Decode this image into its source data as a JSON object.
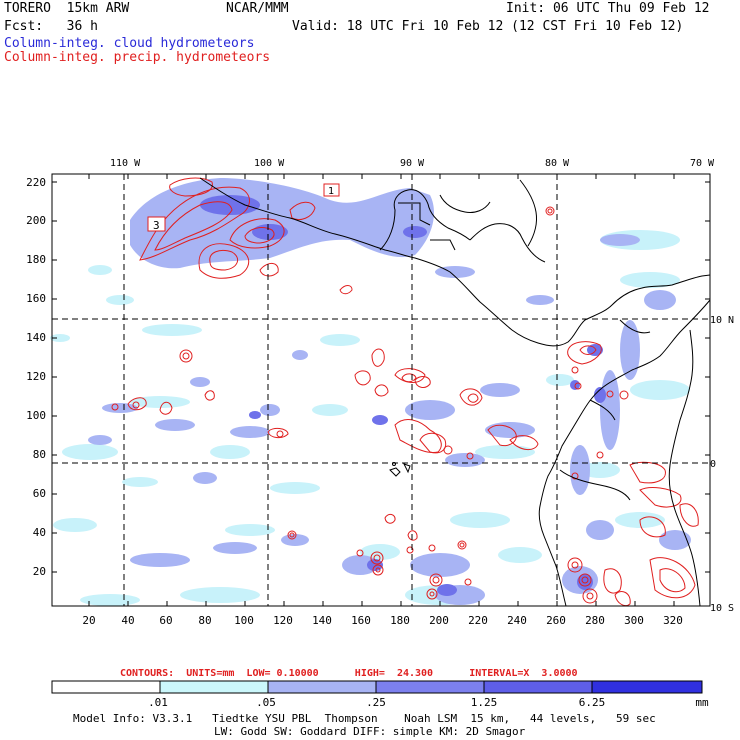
{
  "header": {
    "model": "TORERO  15km ARW",
    "org": "NCAR/MMM",
    "init": "Init: 06 UTC Thu 09 Feb 12",
    "fcst": "Fcst:   36 h",
    "valid": "Valid: 18 UTC Fri 10 Feb 12 (12 CST Fri 10 Feb 12)",
    "field_blue": "Column-integ. cloud hydrometeors",
    "field_red": "Column-integ. precip. hydrometeors"
  },
  "map": {
    "lon_labels": [
      "110 W",
      "100 W",
      "90 W",
      "80 W",
      "70 W"
    ],
    "lat_labels": [
      "10 N",
      "0",
      "10 S"
    ],
    "y_ticks": [
      "220",
      "200",
      "180",
      "160",
      "140",
      "120",
      "100",
      "80",
      "60",
      "40",
      "20"
    ],
    "x_ticks": [
      "20",
      "40",
      "60",
      "80",
      "100",
      "120",
      "140",
      "160",
      "180",
      "200",
      "220",
      "240",
      "260",
      "280",
      "300",
      "320"
    ],
    "box_labels": [
      "3",
      "1"
    ],
    "colors": {
      "cloud_light": "#c8f2fa",
      "cloud_mid": "#a8b4f4",
      "cloud_dark": "#6f72ea",
      "precip": "#e02020",
      "coast": "#000000"
    }
  },
  "contour_info": {
    "text": "CONTOURS:  UNITS=mm  LOW= 0.10000      HIGH=  24.300      INTERVAL=X  3.0000"
  },
  "colorbar": {
    "labels": [
      ".01",
      ".05",
      ".25",
      "1.25",
      "6.25"
    ],
    "units": "mm",
    "colors": [
      "#ffffff",
      "#cbf7fb",
      "#a8b4f4",
      "#7c80ee",
      "#5e5ee8",
      "#3030e0"
    ]
  },
  "footer": {
    "line1": "Model Info: V3.3.1   Tiedtke YSU PBL  Thompson    Noah LSM  15 km,   44 levels,   59 sec",
    "line2": "LW: Godd SW: Goddard DIFF: simple KM: 2D Smagor"
  }
}
